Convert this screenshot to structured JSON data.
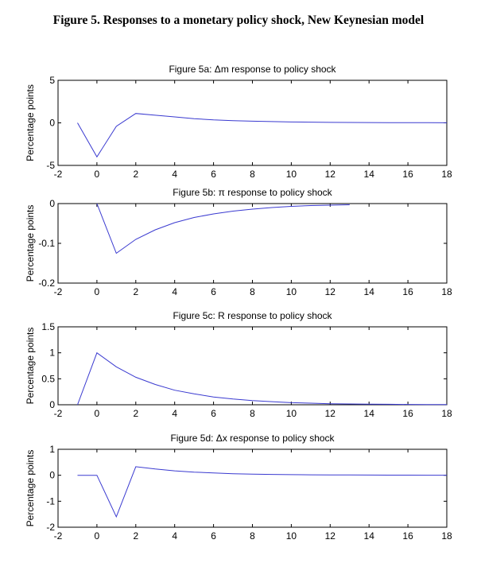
{
  "title": "Figure 5. Responses to a monetary policy shock, New Keynesian model",
  "line_color": "#3a3ad0",
  "chart_data": [
    {
      "type": "line",
      "title": "Figure 5a: Δm response to policy shock",
      "xlabel": "",
      "ylabel": "Percentage points",
      "xlim": [
        -2,
        18
      ],
      "ylim": [
        -5,
        5
      ],
      "xticks": [
        -2,
        0,
        2,
        4,
        6,
        8,
        10,
        12,
        14,
        16,
        18
      ],
      "yticks": [
        -5,
        0,
        5
      ],
      "grid": false,
      "x": [
        -1,
        0,
        1,
        2,
        3,
        4,
        5,
        6,
        7,
        8,
        9,
        10,
        11,
        12,
        13,
        14,
        15,
        16,
        17,
        18
      ],
      "y": [
        0,
        -4,
        -0.4,
        1.1,
        0.9,
        0.7,
        0.5,
        0.35,
        0.25,
        0.2,
        0.15,
        0.1,
        0.08,
        0.06,
        0.05,
        0.04,
        0.03,
        0.02,
        0.02,
        0.01
      ]
    },
    {
      "type": "line",
      "title": "Figure 5b: π response to policy shock",
      "xlabel": "",
      "ylabel": "Percentage points",
      "xlim": [
        -2,
        18
      ],
      "ylim": [
        -0.2,
        0
      ],
      "xticks": [
        -2,
        0,
        2,
        4,
        6,
        8,
        10,
        12,
        14,
        16,
        18
      ],
      "yticks": [
        -0.2,
        -0.1,
        0
      ],
      "grid": false,
      "x": [
        0,
        1,
        2,
        3,
        4,
        5,
        6,
        7,
        8,
        9,
        10,
        11,
        12,
        13
      ],
      "y": [
        0,
        -0.125,
        -0.09,
        -0.066,
        -0.048,
        -0.035,
        -0.026,
        -0.019,
        -0.014,
        -0.01,
        -0.007,
        -0.005,
        -0.004,
        -0.003
      ]
    },
    {
      "type": "line",
      "title": "Figure 5c: R response to policy shock",
      "xlabel": "",
      "ylabel": "Percentage points",
      "xlim": [
        -2,
        18
      ],
      "ylim": [
        0,
        1.5
      ],
      "xticks": [
        -2,
        0,
        2,
        4,
        6,
        8,
        10,
        12,
        14,
        16,
        18
      ],
      "yticks": [
        0,
        0.5,
        1,
        1.5
      ],
      "grid": false,
      "x": [
        -1,
        0,
        1,
        2,
        3,
        4,
        5,
        6,
        7,
        8,
        9,
        10,
        11,
        12,
        13,
        14,
        15,
        16,
        17,
        18
      ],
      "y": [
        0,
        1,
        0.73,
        0.53,
        0.39,
        0.28,
        0.21,
        0.15,
        0.11,
        0.08,
        0.06,
        0.04,
        0.03,
        0.02,
        0.016,
        0.012,
        0.009,
        0.006,
        0.005,
        0.003
      ]
    },
    {
      "type": "line",
      "title": "Figure 5d: Δx response to policy shock",
      "xlabel": "",
      "ylabel": "Percentage points",
      "xlim": [
        -2,
        18
      ],
      "ylim": [
        -2,
        1
      ],
      "xticks": [
        -2,
        0,
        2,
        4,
        6,
        8,
        10,
        12,
        14,
        16,
        18
      ],
      "yticks": [
        -2,
        -1,
        0,
        1
      ],
      "grid": false,
      "x": [
        -1,
        0,
        1,
        2,
        3,
        4,
        5,
        6,
        7,
        8,
        9,
        10,
        11,
        12,
        13,
        14,
        15,
        16,
        17,
        18
      ],
      "y": [
        0,
        0,
        -1.6,
        0.33,
        0.24,
        0.17,
        0.12,
        0.09,
        0.06,
        0.045,
        0.033,
        0.024,
        0.018,
        0.013,
        0.01,
        0.007,
        0.005,
        0.004,
        0.003,
        0.002
      ]
    }
  ]
}
